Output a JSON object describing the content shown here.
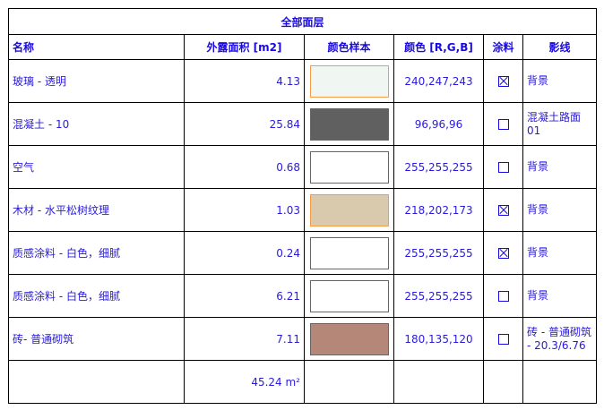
{
  "title": "全部面层",
  "headers": [
    "名称",
    "外露面积 [m2]",
    "颜色样本",
    "颜色  [R,G,B]",
    "涂料",
    "影线"
  ],
  "rows": [
    {
      "name": "玻璃 - 透明",
      "area": "4.13",
      "rgb": "240,247,243",
      "color": "#f0f7f3",
      "border": "#f79a4a",
      "paint": true,
      "hatch": "背景"
    },
    {
      "name": "混凝土 - 10",
      "area": "25.84",
      "rgb": "96,96,96",
      "color": "#606060",
      "border": "#666666",
      "paint": false,
      "hatch": "混凝土路面01"
    },
    {
      "name": "空气",
      "area": "0.68",
      "rgb": "255,255,255",
      "color": "#ffffff",
      "border": "#666666",
      "paint": false,
      "hatch": "背景"
    },
    {
      "name": "木材 - 水平松树纹理",
      "area": "1.03",
      "rgb": "218,202,173",
      "color": "#dacaad",
      "border": "#f79a4a",
      "paint": true,
      "hatch": "背景"
    },
    {
      "name": "质感涂料 - 白色，细腻",
      "area": "0.24",
      "rgb": "255,255,255",
      "color": "#ffffff",
      "border": "#666666",
      "paint": true,
      "hatch": "背景"
    },
    {
      "name": "质感涂料 - 白色，细腻",
      "area": "6.21",
      "rgb": "255,255,255",
      "color": "#ffffff",
      "border": "#666666",
      "paint": false,
      "hatch": "背景"
    },
    {
      "name": "砖- 普通砌筑",
      "area": "7.11",
      "rgb": "180,135,120",
      "color": "#b48778",
      "border": "#666666",
      "paint": false,
      "hatch": "砖 - 普通砌筑 - 20.3/6.76"
    }
  ],
  "total": "45.24 m²"
}
